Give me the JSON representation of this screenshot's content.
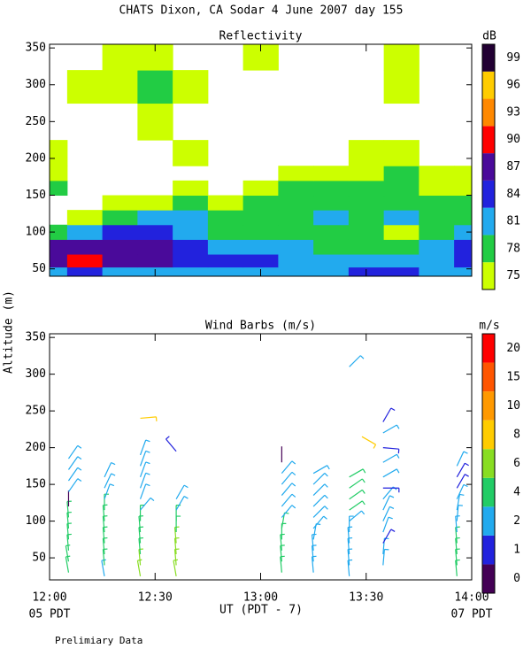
{
  "title": "CHATS Dixon, CA  Sodar   4 June 2007   day 155",
  "ylabel": "Altitude (m)",
  "xlabel": "UT  (PDT - 7)",
  "x_start_note": "05 PDT",
  "x_end_note": "07 PDT",
  "footnote": "Prelimiary Data",
  "chart_data": [
    {
      "type": "heatmap",
      "title": "Reflectivity",
      "x": [
        12,
        12.1667,
        12.3333,
        12.5,
        12.6667,
        12.8333,
        13,
        13.1667,
        13.3333,
        13.5,
        13.6667,
        13.8333,
        14
      ],
      "y": [
        45,
        60,
        80,
        100,
        120,
        140,
        160,
        180,
        200,
        250,
        300,
        340
      ],
      "values": [
        [
          81,
          84,
          81,
          81,
          81,
          81,
          81,
          81,
          81,
          84,
          84,
          81,
          81
        ],
        [
          87,
          90,
          87,
          87,
          84,
          84,
          84,
          81,
          81,
          81,
          81,
          81,
          84
        ],
        [
          87,
          87,
          87,
          87,
          84,
          81,
          81,
          81,
          78,
          78,
          78,
          81,
          84
        ],
        [
          78,
          81,
          84,
          84,
          81,
          78,
          78,
          78,
          78,
          78,
          75,
          78,
          81
        ],
        [
          null,
          75,
          78,
          81,
          81,
          78,
          78,
          78,
          81,
          78,
          81,
          78,
          78
        ],
        [
          null,
          null,
          75,
          75,
          78,
          75,
          78,
          78,
          78,
          78,
          78,
          78,
          78
        ],
        [
          78,
          null,
          null,
          null,
          75,
          null,
          75,
          78,
          78,
          78,
          78,
          75,
          75
        ],
        [
          75,
          null,
          null,
          null,
          null,
          null,
          null,
          75,
          75,
          75,
          78,
          75,
          75
        ],
        [
          75,
          null,
          null,
          null,
          75,
          null,
          null,
          null,
          null,
          75,
          75,
          null,
          null
        ],
        [
          null,
          null,
          null,
          75,
          null,
          null,
          null,
          null,
          null,
          null,
          null,
          null,
          null
        ],
        [
          null,
          75,
          75,
          78,
          75,
          null,
          null,
          null,
          null,
          null,
          75,
          null,
          null
        ],
        [
          null,
          null,
          75,
          75,
          null,
          null,
          75,
          null,
          null,
          null,
          75,
          null,
          null
        ]
      ],
      "xlim": [
        12,
        14
      ],
      "xticks": [
        12,
        12.5,
        13,
        13.5,
        14
      ],
      "ylim": [
        40,
        355
      ],
      "yticks": [
        50,
        100,
        150,
        200,
        250,
        300,
        350
      ],
      "colorbar": {
        "label": "dB",
        "levels": [
          75,
          78,
          81,
          84,
          87,
          90,
          93,
          96,
          99
        ],
        "colors": [
          "#ccff00",
          "#22cc44",
          "#22aaee",
          "#2222dd",
          "#4a0a9a",
          "#ff0000",
          "#ff8800",
          "#ffcc00",
          "#220033"
        ]
      }
    },
    {
      "type": "barbs",
      "title": "Wind Barbs (m/s)",
      "barbs": [
        {
          "x": 12.09,
          "y": 30,
          "speed": 5,
          "direction": 350
        },
        {
          "x": 12.09,
          "y": 45,
          "speed": 5,
          "direction": 350
        },
        {
          "x": 12.09,
          "y": 60,
          "speed": 5,
          "direction": 355
        },
        {
          "x": 12.09,
          "y": 75,
          "speed": 5,
          "direction": 355
        },
        {
          "x": 12.09,
          "y": 90,
          "speed": 5,
          "direction": 355
        },
        {
          "x": 12.09,
          "y": 105,
          "speed": 5,
          "direction": 355
        },
        {
          "x": 12.09,
          "y": 120,
          "speed": 0.5,
          "direction": 0
        },
        {
          "x": 12.09,
          "y": 140,
          "speed": 3,
          "direction": 35
        },
        {
          "x": 12.09,
          "y": 155,
          "speed": 3,
          "direction": 35
        },
        {
          "x": 12.09,
          "y": 170,
          "speed": 3,
          "direction": 35
        },
        {
          "x": 12.09,
          "y": 185,
          "speed": 3,
          "direction": 35
        },
        {
          "x": 12.26,
          "y": 25,
          "speed": 3,
          "direction": 350
        },
        {
          "x": 12.26,
          "y": 40,
          "speed": 5,
          "direction": 355
        },
        {
          "x": 12.26,
          "y": 55,
          "speed": 5,
          "direction": 355
        },
        {
          "x": 12.26,
          "y": 70,
          "speed": 5,
          "direction": 355
        },
        {
          "x": 12.26,
          "y": 85,
          "speed": 5,
          "direction": 355
        },
        {
          "x": 12.26,
          "y": 100,
          "speed": 5,
          "direction": 355
        },
        {
          "x": 12.26,
          "y": 115,
          "speed": 5,
          "direction": 0
        },
        {
          "x": 12.26,
          "y": 130,
          "speed": 3,
          "direction": 20
        },
        {
          "x": 12.26,
          "y": 145,
          "speed": 3,
          "direction": 25
        },
        {
          "x": 12.26,
          "y": 160,
          "speed": 3,
          "direction": 25
        },
        {
          "x": 12.43,
          "y": 25,
          "speed": 6.5,
          "direction": 350
        },
        {
          "x": 12.43,
          "y": 40,
          "speed": 6.5,
          "direction": 355
        },
        {
          "x": 12.43,
          "y": 55,
          "speed": 5,
          "direction": 355
        },
        {
          "x": 12.43,
          "y": 70,
          "speed": 5,
          "direction": 355
        },
        {
          "x": 12.43,
          "y": 85,
          "speed": 5,
          "direction": 355
        },
        {
          "x": 12.43,
          "y": 100,
          "speed": 5,
          "direction": 0
        },
        {
          "x": 12.43,
          "y": 115,
          "speed": 3,
          "direction": 40
        },
        {
          "x": 12.43,
          "y": 130,
          "speed": 3,
          "direction": 20
        },
        {
          "x": 12.43,
          "y": 145,
          "speed": 3,
          "direction": 20
        },
        {
          "x": 12.43,
          "y": 160,
          "speed": 3,
          "direction": 20
        },
        {
          "x": 12.43,
          "y": 175,
          "speed": 3,
          "direction": 20
        },
        {
          "x": 12.43,
          "y": 190,
          "speed": 3,
          "direction": 20
        },
        {
          "x": 12.43,
          "y": 240,
          "speed": 9,
          "direction": 85
        },
        {
          "x": 12.6,
          "y": 25,
          "speed": 6.5,
          "direction": 350
        },
        {
          "x": 12.6,
          "y": 40,
          "speed": 6.5,
          "direction": 355
        },
        {
          "x": 12.6,
          "y": 55,
          "speed": 6.5,
          "direction": 355
        },
        {
          "x": 12.6,
          "y": 70,
          "speed": 6.5,
          "direction": 355
        },
        {
          "x": 12.6,
          "y": 85,
          "speed": 5,
          "direction": 0
        },
        {
          "x": 12.6,
          "y": 100,
          "speed": 5,
          "direction": 0
        },
        {
          "x": 12.6,
          "y": 115,
          "speed": 3,
          "direction": 30
        },
        {
          "x": 12.6,
          "y": 130,
          "speed": 3,
          "direction": 30
        },
        {
          "x": 12.6,
          "y": 195,
          "speed": 1.5,
          "direction": 320
        },
        {
          "x": 13.1,
          "y": 30,
          "speed": 5,
          "direction": 355
        },
        {
          "x": 13.1,
          "y": 45,
          "speed": 5,
          "direction": 355
        },
        {
          "x": 13.1,
          "y": 60,
          "speed": 5,
          "direction": 355
        },
        {
          "x": 13.1,
          "y": 75,
          "speed": 5,
          "direction": 0
        },
        {
          "x": 13.1,
          "y": 90,
          "speed": 5,
          "direction": 10
        },
        {
          "x": 13.1,
          "y": 105,
          "speed": 3,
          "direction": 40
        },
        {
          "x": 13.1,
          "y": 120,
          "speed": 3,
          "direction": 40
        },
        {
          "x": 13.1,
          "y": 135,
          "speed": 3,
          "direction": 40
        },
        {
          "x": 13.1,
          "y": 150,
          "speed": 3,
          "direction": 40
        },
        {
          "x": 13.1,
          "y": 165,
          "speed": 3,
          "direction": 40
        },
        {
          "x": 13.1,
          "y": 180,
          "speed": 0.5,
          "direction": 0
        },
        {
          "x": 13.25,
          "y": 30,
          "speed": 3,
          "direction": 355
        },
        {
          "x": 13.25,
          "y": 45,
          "speed": 3,
          "direction": 355
        },
        {
          "x": 13.25,
          "y": 60,
          "speed": 3,
          "direction": 355
        },
        {
          "x": 13.25,
          "y": 75,
          "speed": 3,
          "direction": 10
        },
        {
          "x": 13.25,
          "y": 90,
          "speed": 3,
          "direction": 40
        },
        {
          "x": 13.25,
          "y": 105,
          "speed": 3,
          "direction": 45
        },
        {
          "x": 13.25,
          "y": 120,
          "speed": 3,
          "direction": 45
        },
        {
          "x": 13.25,
          "y": 135,
          "speed": 3,
          "direction": 45
        },
        {
          "x": 13.25,
          "y": 150,
          "speed": 3,
          "direction": 45
        },
        {
          "x": 13.25,
          "y": 165,
          "speed": 3,
          "direction": 60
        },
        {
          "x": 13.42,
          "y": 25,
          "speed": 3,
          "direction": 355
        },
        {
          "x": 13.42,
          "y": 40,
          "speed": 3,
          "direction": 355
        },
        {
          "x": 13.42,
          "y": 55,
          "speed": 3,
          "direction": 355
        },
        {
          "x": 13.42,
          "y": 70,
          "speed": 3,
          "direction": 355
        },
        {
          "x": 13.42,
          "y": 85,
          "speed": 3,
          "direction": 0
        },
        {
          "x": 13.42,
          "y": 100,
          "speed": 3,
          "direction": 50
        },
        {
          "x": 13.42,
          "y": 115,
          "speed": 5,
          "direction": 55
        },
        {
          "x": 13.42,
          "y": 130,
          "speed": 5,
          "direction": 55
        },
        {
          "x": 13.42,
          "y": 145,
          "speed": 5,
          "direction": 55
        },
        {
          "x": 13.42,
          "y": 160,
          "speed": 5,
          "direction": 60
        },
        {
          "x": 13.42,
          "y": 310,
          "speed": 3,
          "direction": 45
        },
        {
          "x": 13.48,
          "y": 215,
          "speed": 9,
          "direction": 120
        },
        {
          "x": 13.58,
          "y": 40,
          "speed": 3,
          "direction": 5
        },
        {
          "x": 13.58,
          "y": 55,
          "speed": 3,
          "direction": 5
        },
        {
          "x": 13.58,
          "y": 70,
          "speed": 1.5,
          "direction": 30
        },
        {
          "x": 13.58,
          "y": 85,
          "speed": 3,
          "direction": 20
        },
        {
          "x": 13.58,
          "y": 100,
          "speed": 3,
          "direction": 25
        },
        {
          "x": 13.58,
          "y": 115,
          "speed": 3,
          "direction": 25
        },
        {
          "x": 13.58,
          "y": 130,
          "speed": 3,
          "direction": 40
        },
        {
          "x": 13.58,
          "y": 145,
          "speed": 1.5,
          "direction": 90
        },
        {
          "x": 13.58,
          "y": 160,
          "speed": 3,
          "direction": 60
        },
        {
          "x": 13.58,
          "y": 180,
          "speed": 3,
          "direction": 60
        },
        {
          "x": 13.58,
          "y": 200,
          "speed": 1.5,
          "direction": 95
        },
        {
          "x": 13.58,
          "y": 220,
          "speed": 3,
          "direction": 60
        },
        {
          "x": 13.58,
          "y": 235,
          "speed": 1.5,
          "direction": 30
        },
        {
          "x": 13.93,
          "y": 25,
          "speed": 5,
          "direction": 355
        },
        {
          "x": 13.93,
          "y": 40,
          "speed": 5,
          "direction": 355
        },
        {
          "x": 13.93,
          "y": 55,
          "speed": 5,
          "direction": 355
        },
        {
          "x": 13.93,
          "y": 70,
          "speed": 5,
          "direction": 355
        },
        {
          "x": 13.93,
          "y": 85,
          "speed": 3,
          "direction": 355
        },
        {
          "x": 13.93,
          "y": 100,
          "speed": 3,
          "direction": 5
        },
        {
          "x": 13.93,
          "y": 115,
          "speed": 3,
          "direction": 10
        },
        {
          "x": 13.93,
          "y": 130,
          "speed": 3,
          "direction": 25
        },
        {
          "x": 13.93,
          "y": 145,
          "speed": 1.5,
          "direction": 30
        },
        {
          "x": 13.93,
          "y": 160,
          "speed": 1.5,
          "direction": 30
        },
        {
          "x": 13.93,
          "y": 175,
          "speed": 3,
          "direction": 25
        }
      ],
      "xlim": [
        12,
        14
      ],
      "xticks": [
        {
          "value": 12,
          "label": "12:00"
        },
        {
          "value": 12.5,
          "label": "12:30"
        },
        {
          "value": 13,
          "label": "13:00"
        },
        {
          "value": 13.5,
          "label": "13:30"
        },
        {
          "value": 14,
          "label": "14:00"
        }
      ],
      "ylim": [
        20,
        355
      ],
      "yticks": [
        50,
        100,
        150,
        200,
        250,
        300,
        350
      ],
      "colorbar": {
        "label": "m/s",
        "levels": [
          0,
          1,
          2,
          4,
          6,
          8,
          10,
          15,
          20
        ],
        "colors": [
          "#440055",
          "#2222dd",
          "#22aaee",
          "#22cc66",
          "#88dd22",
          "#ffcc00",
          "#ff9900",
          "#ff5500",
          "#ff0000"
        ]
      }
    }
  ]
}
